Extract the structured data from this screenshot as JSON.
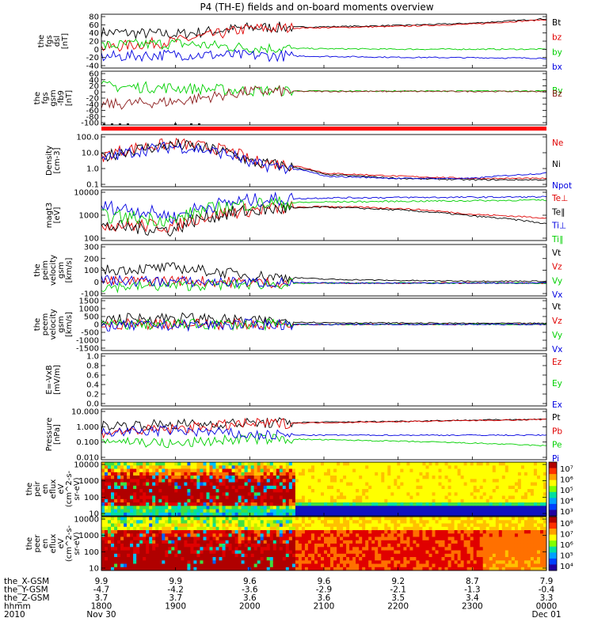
{
  "title": "P4 (TH-E) fields and on-board moments overview",
  "colors": {
    "black": "#000000",
    "red": "#e00000",
    "green": "#00d000",
    "blue": "#0000e0",
    "darkred": "#8b1a1a"
  },
  "panels": [
    {
      "id": "fgs-dsl",
      "ylabel": [
        "the",
        "fgs",
        "dsl",
        "[nT]"
      ],
      "ticks": [
        "80",
        "60",
        "40",
        "20",
        "0",
        "-20",
        "-40"
      ],
      "legend": [
        {
          "text": "Bt",
          "color": "#000000"
        },
        {
          "text": "bz",
          "color": "#e00000"
        },
        {
          "text": "by",
          "color": "#00d000"
        },
        {
          "text": "bx",
          "color": "#0000e0"
        }
      ]
    },
    {
      "id": "fgs-gsm",
      "ylabel": [
        "the",
        "fgs",
        "gsm",
        "-fb9",
        "[nT]"
      ],
      "ticks": [
        "60",
        "40",
        "20",
        "0",
        "-20",
        "-40",
        "-60",
        "-80",
        "-100"
      ],
      "legend": [
        {
          "text": "By",
          "color": "#00d000"
        },
        {
          "text": "Bz",
          "color": "#8b1a1a"
        }
      ]
    },
    {
      "id": "density",
      "ylabel": [
        "Density",
        "[cm-3]"
      ],
      "ticks": [
        "100.0",
        "10.0",
        "1.0",
        "0.1"
      ],
      "legend": [
        {
          "text": "Ne",
          "color": "#e00000"
        },
        {
          "text": "Ni",
          "color": "#000000"
        },
        {
          "text": "Npot",
          "color": "#0000e0"
        }
      ]
    },
    {
      "id": "temperature",
      "ylabel": [
        "magt3",
        "[eV]"
      ],
      "ticks": [
        "10000",
        "1000",
        "100"
      ],
      "legend": [
        {
          "text": "Te⊥",
          "color": "#e00000"
        },
        {
          "text": "Te∥",
          "color": "#000000"
        },
        {
          "text": "Ti⊥",
          "color": "#0000e0"
        },
        {
          "text": "Ti∥",
          "color": "#00d000"
        }
      ]
    },
    {
      "id": "peim-velocity",
      "ylabel": [
        "the",
        "peim",
        "velocity",
        "gsm",
        "[km/s]"
      ],
      "ticks": [
        "300",
        "200",
        "100",
        "0",
        "-100"
      ],
      "legend": [
        {
          "text": "Vt",
          "color": "#000000"
        },
        {
          "text": "Vz",
          "color": "#e00000"
        },
        {
          "text": "Vy",
          "color": "#00d000"
        },
        {
          "text": "Vx",
          "color": "#0000e0"
        }
      ]
    },
    {
      "id": "peem-velocity",
      "ylabel": [
        "the",
        "peem",
        "velocity",
        "gsm",
        "[km/s]"
      ],
      "ticks": [
        "1500",
        "1000",
        "500",
        "0",
        "-500",
        "-1000",
        "-1500"
      ],
      "legend": [
        {
          "text": "Vt",
          "color": "#000000"
        },
        {
          "text": "Vz",
          "color": "#e00000"
        },
        {
          "text": "Vy",
          "color": "#00d000"
        },
        {
          "text": "Vx",
          "color": "#0000e0"
        }
      ]
    },
    {
      "id": "efield",
      "ylabel": [
        "E=-VxB",
        "[mV/m]"
      ],
      "ticks": [
        "1.0",
        "0.8",
        "0.6",
        "0.4",
        "0.2",
        "0.0"
      ],
      "legend": [
        {
          "text": "Ez",
          "color": "#e00000"
        },
        {
          "text": "Ey",
          "color": "#00d000"
        },
        {
          "text": "Ex",
          "color": "#0000e0"
        }
      ]
    },
    {
      "id": "pressure",
      "ylabel": [
        "Pressure",
        "[nPa]"
      ],
      "ticks": [
        "10.000",
        "1.000",
        "0.100",
        "0.010"
      ],
      "legend": [
        {
          "text": "Pt",
          "color": "#000000"
        },
        {
          "text": "Pb",
          "color": "#e00000"
        },
        {
          "text": "Pe",
          "color": "#00d000"
        },
        {
          "text": "Pi",
          "color": "#0000e0"
        }
      ]
    },
    {
      "id": "peir-spec",
      "ylabel": [
        "the",
        "peir",
        "en",
        "eflux",
        "eV",
        "(cm^2-s-",
        "sr-eV)"
      ],
      "ticks": [
        "10000",
        "1000",
        "100",
        "10"
      ],
      "colorbar": [
        "10⁷",
        "10⁶",
        "10⁵",
        "10⁴",
        "10³"
      ]
    },
    {
      "id": "peer-spec",
      "ylabel": [
        "the",
        "peer",
        "en",
        "eflux",
        "eV",
        "(cm^2-s-",
        "sr-eV)"
      ],
      "ticks": [
        "10000",
        "1000",
        "100",
        "10"
      ],
      "colorbar": [
        "10⁸",
        "10⁷",
        "10⁶",
        "10⁵",
        "10⁴"
      ]
    }
  ],
  "xaxis": {
    "row_labels": [
      "the_X-GSM",
      "the_Y-GSM",
      "the_Z-GSM",
      "hhmm",
      "2010"
    ],
    "columns": [
      [
        "9.9",
        "-4.7",
        "3.7",
        "1800",
        "Nov 30"
      ],
      [
        "9.9",
        "-4.2",
        "3.7",
        "1900",
        ""
      ],
      [
        "9.6",
        "-3.6",
        "3.6",
        "2000",
        ""
      ],
      [
        "9.6",
        "-2.9",
        "3.6",
        "2100",
        ""
      ],
      [
        "9.2",
        "-2.1",
        "3.5",
        "2200",
        ""
      ],
      [
        "8.7",
        "-1.3",
        "3.4",
        "2300",
        ""
      ],
      [
        "7.9",
        "-0.4",
        "3.3",
        "0000",
        "Dec 01"
      ]
    ]
  },
  "chart_data": {
    "type": "line",
    "title": "P4 (TH-E) fields and on-board moments overview",
    "x": [
      "1800",
      "1900",
      "2000",
      "2100",
      "2200",
      "2300",
      "0000"
    ],
    "xlabel": "hhmm",
    "note_dates": [
      "Nov 30",
      "Dec 01"
    ],
    "panels": [
      {
        "name": "the_fgs_dsl",
        "ylabel": "[nT]",
        "ylim": [
          -40,
          80
        ],
        "series": [
          {
            "name": "Bt",
            "values": [
              40,
              35,
              50,
              52,
              55,
              60,
              70
            ]
          },
          {
            "name": "bz",
            "values": [
              5,
              20,
              48,
              50,
              53,
              58,
              68
            ]
          },
          {
            "name": "by",
            "values": [
              10,
              15,
              5,
              3,
              2,
              2,
              2
            ]
          },
          {
            "name": "bx",
            "values": [
              -15,
              -10,
              -12,
              -14,
              -16,
              -17,
              -18
            ]
          }
        ]
      },
      {
        "name": "the_fgs_gsm-fb9",
        "ylabel": "[nT]",
        "ylim": [
          -100,
          60
        ],
        "series": [
          {
            "name": "By",
            "values": [
              15,
              10,
              2,
              1,
              1,
              1,
              1
            ]
          },
          {
            "name": "Bz",
            "values": [
              -40,
              -30,
              0,
              0,
              0,
              0,
              0
            ]
          }
        ]
      },
      {
        "name": "Density",
        "ylabel": "[cm-3]",
        "ylim": [
          0.1,
          100
        ],
        "scale": "log",
        "series": [
          {
            "name": "Ne",
            "values": [
              5,
              30,
              3,
              0.6,
              0.4,
              0.3,
              0.3
            ]
          },
          {
            "name": "Ni",
            "values": [
              4,
              25,
              2.5,
              0.5,
              0.3,
              0.25,
              0.25
            ]
          },
          {
            "name": "Npot",
            "values": [
              3,
              20,
              2,
              0.4,
              0.3,
              0.3,
              0.6
            ]
          }
        ]
      },
      {
        "name": "magt3",
        "ylabel": "[eV]",
        "ylim": [
          30,
          10000
        ],
        "scale": "log",
        "series": [
          {
            "name": "Te⊥",
            "values": [
              200,
              150,
              1000,
              1500,
              1200,
              600,
              400
            ]
          },
          {
            "name": "Te∥",
            "values": [
              150,
              100,
              900,
              1400,
              1000,
              500,
              200
            ]
          },
          {
            "name": "Ti⊥",
            "values": [
              1500,
              400,
              3000,
              4000,
              4200,
              4300,
              4500
            ]
          },
          {
            "name": "Ti∥",
            "values": [
              500,
              300,
              2000,
              2500,
              2700,
              2900,
              3100
            ]
          }
        ]
      },
      {
        "name": "the_peim_velocity_gsm",
        "ylabel": "[km/s]",
        "ylim": [
          -100,
          300
        ],
        "series": [
          {
            "name": "Vt",
            "values": [
              100,
              120,
              60,
              30,
              20,
              15,
              15
            ]
          },
          {
            "name": "Vz",
            "values": [
              10,
              20,
              5,
              0,
              0,
              0,
              0
            ]
          },
          {
            "name": "Vy",
            "values": [
              -30,
              -20,
              -10,
              0,
              0,
              0,
              0
            ]
          },
          {
            "name": "Vx",
            "values": [
              20,
              10,
              5,
              0,
              0,
              0,
              0
            ]
          }
        ]
      },
      {
        "name": "the_peem_velocity_gsm",
        "ylabel": "[km/s]",
        "ylim": [
          -1500,
          1500
        ],
        "series": [
          {
            "name": "Vt",
            "values": [
              300,
              400,
              200,
              100,
              80,
              60,
              60
            ]
          },
          {
            "name": "Vz",
            "values": [
              0,
              50,
              0,
              0,
              0,
              0,
              0
            ]
          },
          {
            "name": "Vy",
            "values": [
              0,
              0,
              0,
              0,
              0,
              0,
              0
            ]
          },
          {
            "name": "Vx",
            "values": [
              -100,
              -50,
              0,
              0,
              0,
              0,
              0
            ]
          }
        ]
      },
      {
        "name": "E=-VxB",
        "ylabel": "[mV/m]",
        "ylim": [
          0,
          1
        ],
        "series": [
          {
            "name": "Ez",
            "values": []
          },
          {
            "name": "Ey",
            "values": []
          },
          {
            "name": "Ex",
            "values": []
          }
        ]
      },
      {
        "name": "Pressure",
        "ylabel": "[nPa]",
        "ylim": [
          0.005,
          10
        ],
        "scale": "log",
        "series": [
          {
            "name": "Pt",
            "values": [
              0.8,
              1.0,
              1.2,
              1.4,
              1.6,
              1.9,
              2.2
            ]
          },
          {
            "name": "Pb",
            "values": [
              0.3,
              0.5,
              1.1,
              1.3,
              1.5,
              1.8,
              2.1
            ]
          },
          {
            "name": "Pe",
            "values": [
              0.1,
              0.05,
              0.12,
              0.1,
              0.08,
              0.06,
              0.04
            ]
          },
          {
            "name": "Pi",
            "values": [
              0.3,
              0.4,
              0.2,
              0.2,
              0.2,
              0.2,
              0.2
            ]
          }
        ]
      }
    ]
  }
}
